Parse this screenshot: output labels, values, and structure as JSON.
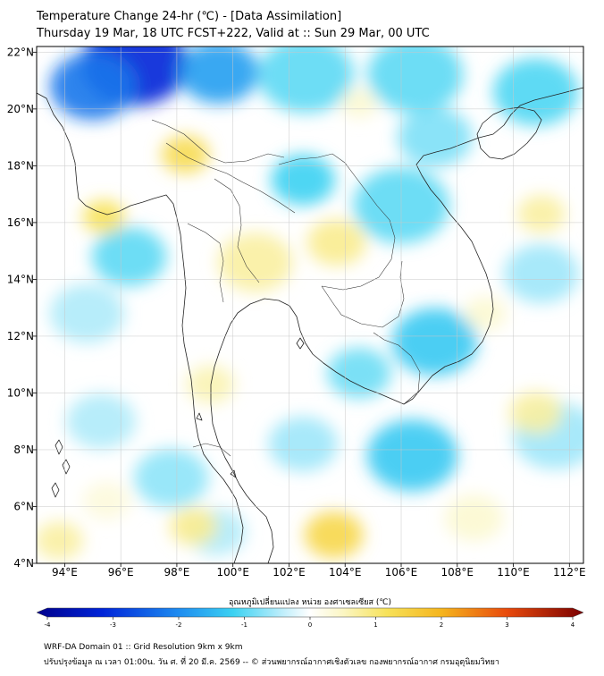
{
  "header": {
    "title": "Temperature Change 24-hr (℃) - [Data Assimilation]",
    "subtitle": "Thursday 19 Mar, 18 UTC FCST+222, Valid at :: Sun 29 Mar, 00 UTC"
  },
  "map": {
    "lon_range": [
      93,
      112.5
    ],
    "lat_range": [
      4,
      22.2
    ],
    "x_ticks": [
      {
        "lon": 94,
        "label": "94°E"
      },
      {
        "lon": 96,
        "label": "96°E"
      },
      {
        "lon": 98,
        "label": "98°E"
      },
      {
        "lon": 100,
        "label": "100°E"
      },
      {
        "lon": 102,
        "label": "102°E"
      },
      {
        "lon": 104,
        "label": "104°E"
      },
      {
        "lon": 106,
        "label": "106°E"
      },
      {
        "lon": 108,
        "label": "108°E"
      },
      {
        "lon": 110,
        "label": "110°E"
      },
      {
        "lon": 112,
        "label": "112°E"
      }
    ],
    "y_ticks": [
      {
        "lat": 22,
        "label": "22°N"
      },
      {
        "lat": 20,
        "label": "20°N"
      },
      {
        "lat": 18,
        "label": "18°N"
      },
      {
        "lat": 16,
        "label": "16°N"
      },
      {
        "lat": 14,
        "label": "14°N"
      },
      {
        "lat": 12,
        "label": "12°N"
      },
      {
        "lat": 10,
        "label": "10°N"
      },
      {
        "lat": 8,
        "label": "8°N"
      },
      {
        "lat": 6,
        "label": "6°N"
      },
      {
        "lat": 4,
        "label": "4°N"
      }
    ],
    "gridlines": true,
    "field_blobs": [
      {
        "lon": 96.5,
        "lat": 21.6,
        "value": -3.0,
        "r": 2.0
      },
      {
        "lon": 95.0,
        "lat": 20.8,
        "value": -2.2,
        "r": 1.6
      },
      {
        "lon": 99.5,
        "lat": 21.3,
        "value": -1.8,
        "r": 1.5
      },
      {
        "lon": 102.6,
        "lat": 21.2,
        "value": -1.0,
        "r": 1.8
      },
      {
        "lon": 106.5,
        "lat": 21.2,
        "value": -1.0,
        "r": 1.8
      },
      {
        "lon": 110.8,
        "lat": 20.6,
        "value": -1.1,
        "r": 1.6
      },
      {
        "lon": 102.5,
        "lat": 17.5,
        "value": -1.2,
        "r": 1.2
      },
      {
        "lon": 106.0,
        "lat": 16.6,
        "value": -1.0,
        "r": 1.8
      },
      {
        "lon": 107.2,
        "lat": 19.0,
        "value": -0.8,
        "r": 1.4
      },
      {
        "lon": 96.3,
        "lat": 14.8,
        "value": -1.0,
        "r": 1.4
      },
      {
        "lon": 94.8,
        "lat": 12.8,
        "value": -0.5,
        "r": 1.4
      },
      {
        "lon": 107.2,
        "lat": 11.8,
        "value": -1.3,
        "r": 1.6
      },
      {
        "lon": 104.5,
        "lat": 10.7,
        "value": -0.9,
        "r": 1.2
      },
      {
        "lon": 106.4,
        "lat": 7.8,
        "value": -1.3,
        "r": 1.7
      },
      {
        "lon": 102.5,
        "lat": 8.2,
        "value": -0.6,
        "r": 1.3
      },
      {
        "lon": 97.8,
        "lat": 7.0,
        "value": -0.7,
        "r": 1.4
      },
      {
        "lon": 95.3,
        "lat": 9.0,
        "value": -0.5,
        "r": 1.3
      },
      {
        "lon": 99.4,
        "lat": 5.1,
        "value": -0.5,
        "r": 1.1
      },
      {
        "lon": 111.5,
        "lat": 8.5,
        "value": -0.6,
        "r": 1.6
      },
      {
        "lon": 111.0,
        "lat": 14.2,
        "value": -0.6,
        "r": 1.4
      },
      {
        "lon": 98.3,
        "lat": 18.4,
        "value": 1.2,
        "r": 0.9
      },
      {
        "lon": 95.4,
        "lat": 16.2,
        "value": 1.1,
        "r": 0.8
      },
      {
        "lon": 100.8,
        "lat": 14.6,
        "value": 0.7,
        "r": 1.4
      },
      {
        "lon": 103.7,
        "lat": 15.3,
        "value": 0.8,
        "r": 1.1
      },
      {
        "lon": 103.6,
        "lat": 5.0,
        "value": 1.3,
        "r": 1.1
      },
      {
        "lon": 98.6,
        "lat": 5.3,
        "value": 0.8,
        "r": 0.9
      },
      {
        "lon": 93.8,
        "lat": 4.8,
        "value": 0.7,
        "r": 0.9
      },
      {
        "lon": 110.8,
        "lat": 9.3,
        "value": 0.7,
        "r": 1.0
      },
      {
        "lon": 111.0,
        "lat": 16.3,
        "value": 0.7,
        "r": 0.9
      },
      {
        "lon": 99.2,
        "lat": 10.3,
        "value": 0.6,
        "r": 0.9
      },
      {
        "lon": 109.0,
        "lat": 12.8,
        "value": 0.4,
        "r": 0.8
      },
      {
        "lon": 108.6,
        "lat": 5.6,
        "value": 0.4,
        "r": 1.1
      },
      {
        "lon": 104.5,
        "lat": 20.2,
        "value": 0.4,
        "r": 0.7
      },
      {
        "lon": 95.5,
        "lat": 6.2,
        "value": 0.3,
        "r": 0.9
      }
    ]
  },
  "colorbar": {
    "title": "อุณหภูมิเปลี่ยนแปลง หน่วย องศาเซลเซียส (℃)",
    "min": -4,
    "max": 4,
    "ticks": [
      "-4",
      "-3",
      "-2",
      "-1",
      "0",
      "1",
      "2",
      "3",
      "4"
    ]
  },
  "footer": {
    "line1": "WRF-DA Domain 01 :: Grid Resolution 9km x 9km",
    "line2": "ปรับปรุงข้อมูล ณ เวลา 01:00น. วัน ศ. ที่ 20 มี.ค. 2569 -- © ส่วนพยากรณ์อากาศเชิงตัวเลข กองพยากรณ์อากาศ กรมอุตุนิยมวิทยา"
  }
}
